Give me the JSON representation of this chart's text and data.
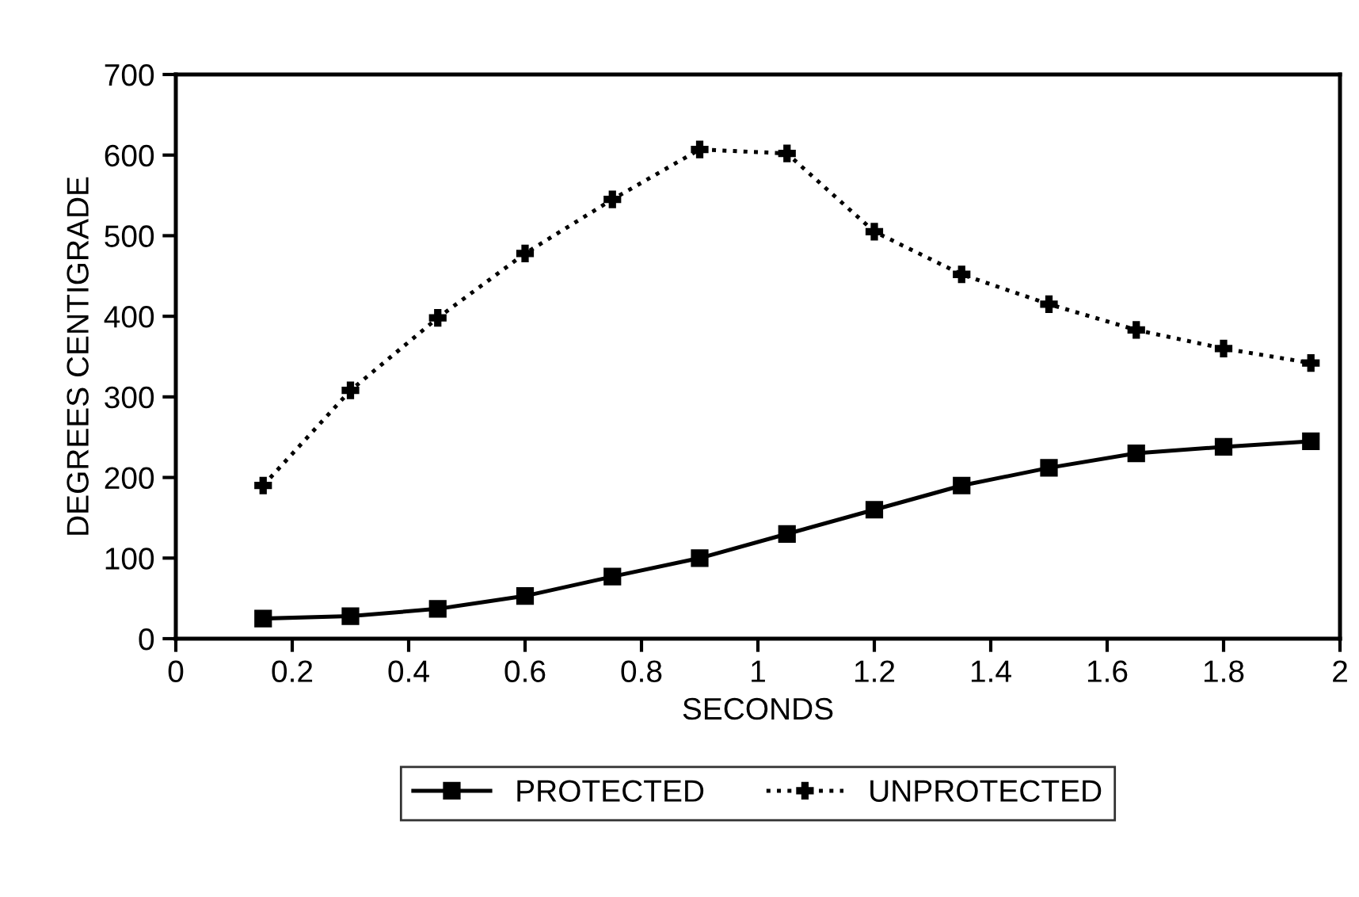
{
  "chart_data": {
    "type": "line",
    "xlabel": "SECONDS",
    "ylabel": "DEGREES CENTIGRADE",
    "x": [
      0.15,
      0.3,
      0.45,
      0.6,
      0.75,
      0.9,
      1.05,
      1.2,
      1.35,
      1.5,
      1.65,
      1.8,
      1.95
    ],
    "series": [
      {
        "name": "PROTECTED",
        "color": "#000000",
        "marker": "square",
        "line_style": "solid",
        "values": [
          25,
          28,
          37,
          53,
          77,
          100,
          130,
          160,
          190,
          212,
          230,
          238,
          245
        ]
      },
      {
        "name": "UNPROTECTED",
        "color": "#000000",
        "marker": "cross",
        "line_style": "dotted",
        "values": [
          190,
          308,
          398,
          478,
          545,
          607,
          602,
          505,
          452,
          415,
          383,
          360,
          342
        ]
      }
    ],
    "xlim": [
      0,
      2
    ],
    "xticks": [
      0,
      0.2,
      0.4,
      0.6,
      0.8,
      1,
      1.2,
      1.4,
      1.6,
      1.8,
      2
    ],
    "ylim": [
      0,
      700
    ],
    "yticks": [
      0,
      100,
      200,
      300,
      400,
      500,
      600,
      700
    ],
    "grid": false,
    "legend": "bottom"
  }
}
